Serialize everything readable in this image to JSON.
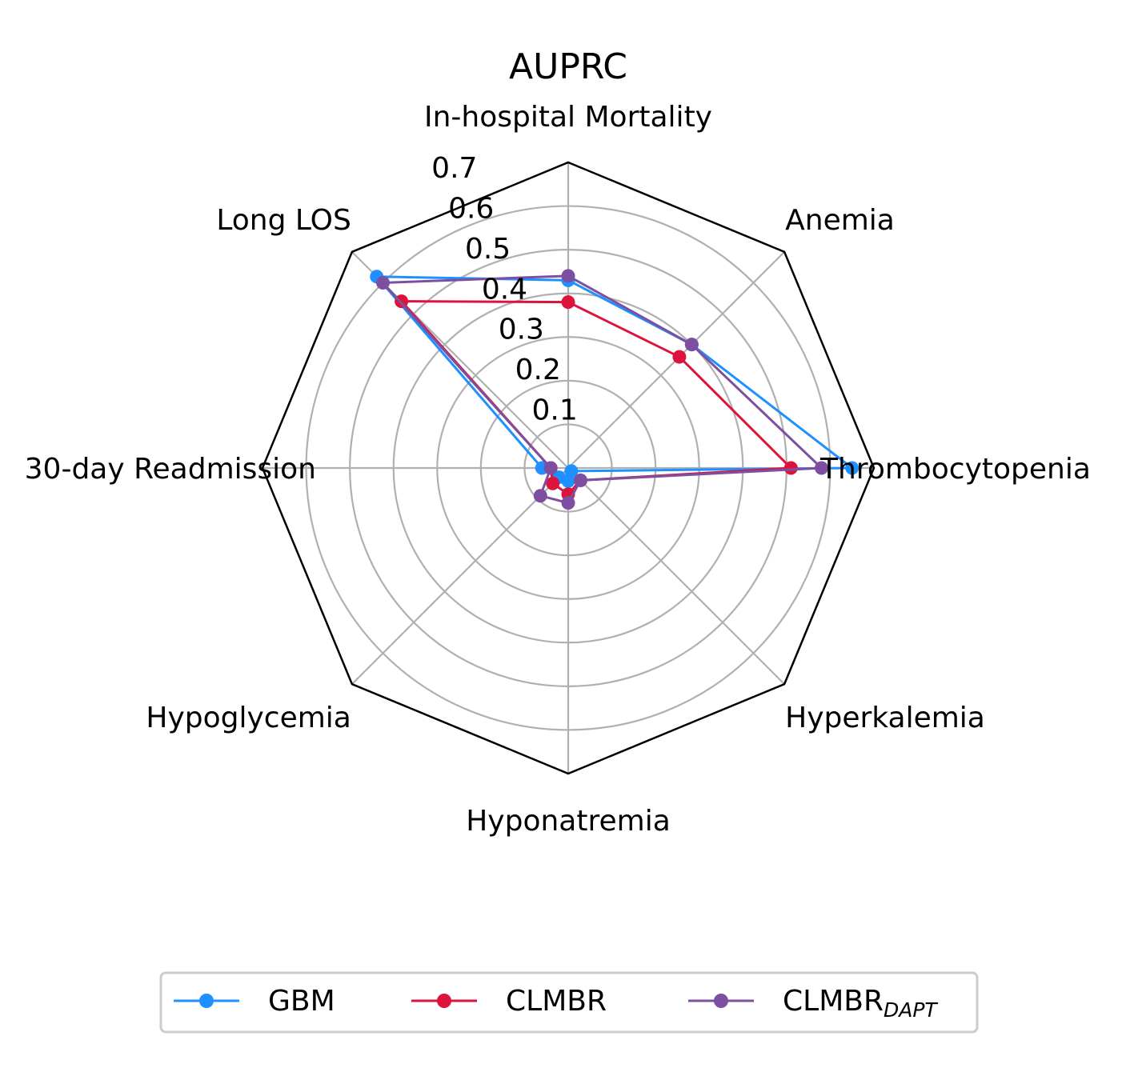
{
  "chart_data": {
    "type": "radar",
    "title": "AUPRC",
    "categories": [
      "In-hospital Mortality",
      "Anemia",
      "Thrombocytopenia",
      "Hyperkalemia",
      "Hyponatremia",
      "Hypoglycemia",
      "30-day Readmission",
      "Long LOS"
    ],
    "rlim": [
      0,
      0.7
    ],
    "rticks": [
      "0.1",
      "0.2",
      "0.3",
      "0.4",
      "0.5",
      "0.6",
      "0.7"
    ],
    "grid": true,
    "series": [
      {
        "name": "GBM",
        "color": "#1e90ff",
        "values": [
          0.43,
          0.4,
          0.65,
          0.01,
          0.03,
          0.03,
          0.06,
          0.62
        ]
      },
      {
        "name": "CLMBR",
        "color": "#dc143c",
        "values": [
          0.38,
          0.36,
          0.51,
          0.04,
          0.06,
          0.05,
          0.04,
          0.54
        ]
      },
      {
        "name": "CLMBR",
        "name_sub": "DAPT",
        "color": "#7d4fa0",
        "values": [
          0.44,
          0.4,
          0.58,
          0.04,
          0.08,
          0.09,
          0.04,
          0.6
        ]
      }
    ],
    "legend": {
      "position": "bottom",
      "ncol": 3
    }
  }
}
